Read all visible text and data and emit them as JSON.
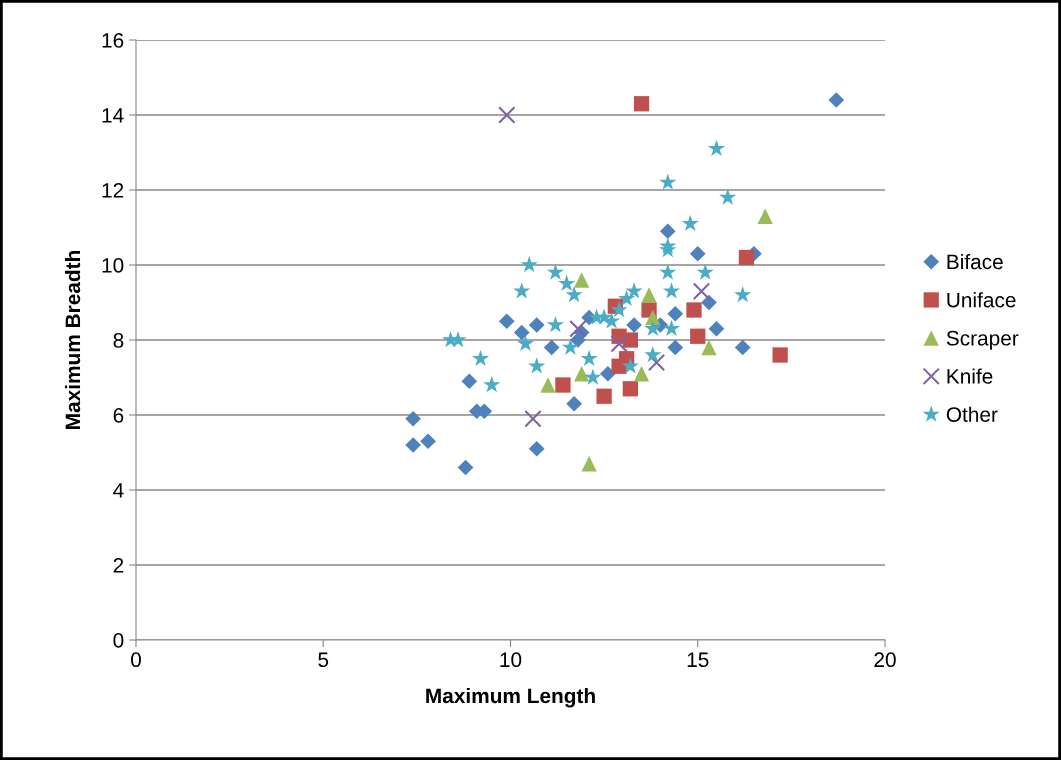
{
  "chart_data": {
    "type": "scatter",
    "xlabel": "Maximum Length",
    "ylabel": "Maximum Breadth",
    "xlim": [
      0,
      20
    ],
    "xticks": [
      0,
      5,
      10,
      15,
      20
    ],
    "ylim": [
      0,
      16
    ],
    "yticks": [
      0,
      2,
      4,
      6,
      8,
      10,
      12,
      14,
      16
    ],
    "grid": "y",
    "legend": "right",
    "series": [
      {
        "name": "Biface",
        "color": "#4f81bd",
        "marker": "diamond",
        "x": [
          7.4,
          7.4,
          7.8,
          8.8,
          8.9,
          9.1,
          9.3,
          9.9,
          10.3,
          10.7,
          10.7,
          11.1,
          11.7,
          11.8,
          11.9,
          12.1,
          12.6,
          13.3,
          14.0,
          14.2,
          15.0,
          14.4,
          15.3,
          15.5,
          14.4,
          16.2,
          16.5,
          18.7
        ],
        "values": [
          5.9,
          5.2,
          5.3,
          4.6,
          6.9,
          6.1,
          6.1,
          8.5,
          8.2,
          8.4,
          5.1,
          7.8,
          6.3,
          8.0,
          8.2,
          8.6,
          7.1,
          8.4,
          8.4,
          10.9,
          10.3,
          8.7,
          9.0,
          8.3,
          7.8,
          7.8,
          10.3,
          14.4
        ]
      },
      {
        "name": "Uniface",
        "color": "#c0504d",
        "marker": "square",
        "x": [
          11.4,
          12.5,
          12.8,
          12.9,
          12.9,
          13.1,
          13.2,
          13.2,
          13.5,
          13.7,
          14.9,
          15.0,
          16.3,
          17.2
        ],
        "values": [
          6.8,
          6.5,
          8.9,
          8.1,
          7.3,
          7.5,
          8.0,
          6.7,
          14.3,
          8.8,
          8.8,
          8.1,
          10.2,
          7.6
        ]
      },
      {
        "name": "Scraper",
        "color": "#9bbb59",
        "marker": "triangle",
        "x": [
          11.0,
          11.9,
          11.9,
          12.1,
          13.5,
          13.7,
          13.8,
          15.3,
          16.8
        ],
        "values": [
          6.8,
          9.6,
          7.1,
          4.7,
          7.1,
          9.2,
          8.6,
          7.8,
          11.3
        ]
      },
      {
        "name": "Knife",
        "color": "#8064a2",
        "marker": "cross",
        "x": [
          9.9,
          10.6,
          11.8,
          12.9,
          13.9,
          15.1
        ],
        "values": [
          14.0,
          5.9,
          8.3,
          7.9,
          7.4,
          9.3
        ]
      },
      {
        "name": "Other",
        "color": "#4bacc6",
        "marker": "star",
        "x": [
          8.4,
          8.6,
          9.2,
          9.5,
          10.3,
          10.5,
          10.4,
          10.7,
          11.2,
          11.2,
          11.5,
          11.7,
          11.6,
          12.1,
          12.2,
          12.3,
          12.5,
          12.7,
          12.9,
          13.1,
          13.3,
          13.2,
          13.8,
          13.8,
          14.2,
          14.2,
          14.2,
          14.2,
          14.3,
          14.3,
          14.8,
          15.5,
          15.8,
          15.2,
          16.2
        ],
        "values": [
          8.0,
          8.0,
          7.5,
          6.8,
          9.3,
          10.0,
          7.9,
          7.3,
          9.8,
          8.4,
          9.5,
          9.2,
          7.8,
          7.5,
          7.0,
          8.6,
          8.6,
          8.5,
          8.8,
          9.1,
          9.3,
          7.3,
          8.3,
          7.6,
          12.2,
          10.5,
          10.4,
          9.8,
          9.3,
          8.3,
          11.1,
          13.1,
          11.8,
          9.8,
          9.2
        ]
      }
    ]
  }
}
